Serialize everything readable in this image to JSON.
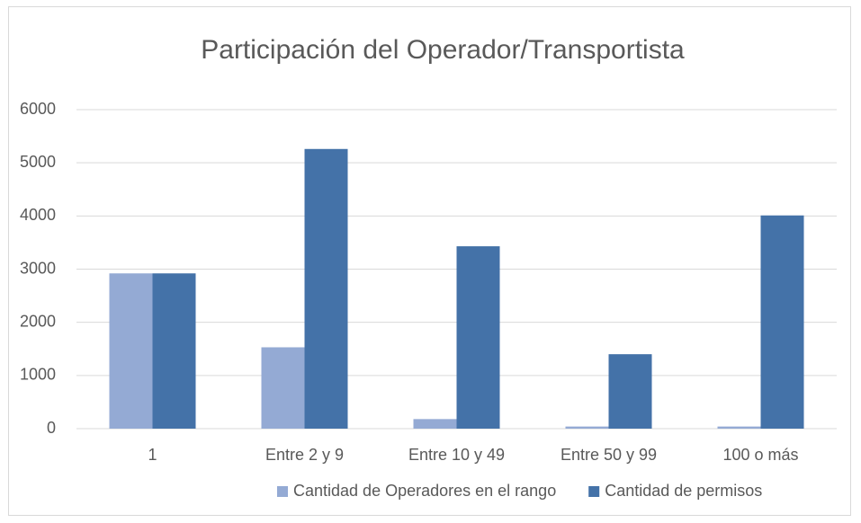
{
  "chart_data": {
    "type": "bar",
    "title": "Participación del Operador/Transportista",
    "categories": [
      "1",
      "Entre 2 y 9",
      "Entre 10 y 49",
      "Entre 50 y 99",
      "100 o más"
    ],
    "series": [
      {
        "name": "Cantidad de Operadores en el rango",
        "color": "#94aad4",
        "values": [
          2920,
          1530,
          180,
          40,
          40
        ]
      },
      {
        "name": "Cantidad de permisos",
        "color": "#4472a8",
        "values": [
          2920,
          5260,
          3430,
          1400,
          4010
        ]
      }
    ],
    "ylim": [
      0,
      6000
    ],
    "yticks": [
      0,
      1000,
      2000,
      3000,
      4000,
      5000,
      6000
    ],
    "grid": true,
    "legend": "bottom"
  }
}
